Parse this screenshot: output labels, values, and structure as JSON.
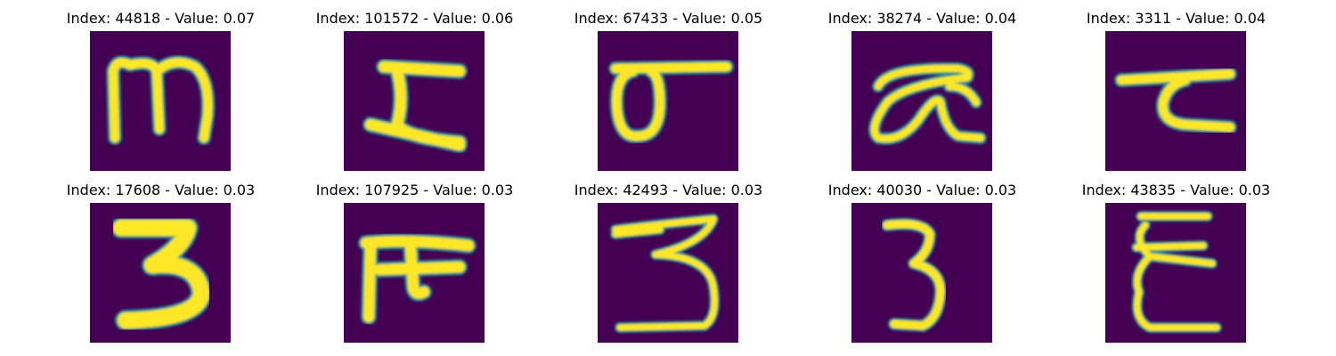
{
  "colormap": {
    "background": "#440154",
    "mid": "#21918c",
    "high": "#fde725"
  },
  "panels": [
    {
      "title": "Index: 44818 - Value: 0.07",
      "glyph": "glyph-m"
    },
    {
      "title": "Index: 101572 - Value: 0.06",
      "glyph": "glyph-z"
    },
    {
      "title": "Index: 67433 - Value: 0.05",
      "glyph": "glyph-sigma"
    },
    {
      "title": "Index: 38274 - Value: 0.04",
      "glyph": "glyph-alpha"
    },
    {
      "title": "Index: 3311 - Value: 0.04",
      "glyph": "glyph-tau"
    },
    {
      "title": "Index: 17608 - Value: 0.03",
      "glyph": "glyph-3-bold"
    },
    {
      "title": "Index: 107925 - Value: 0.03",
      "glyph": "glyph-pi"
    },
    {
      "title": "Index: 42493 - Value: 0.03",
      "glyph": "glyph-3"
    },
    {
      "title": "Index: 40030 - Value: 0.03",
      "glyph": "glyph-3-narrow"
    },
    {
      "title": "Index: 43835 - Value: 0.03",
      "glyph": "glyph-epsilon"
    }
  ]
}
